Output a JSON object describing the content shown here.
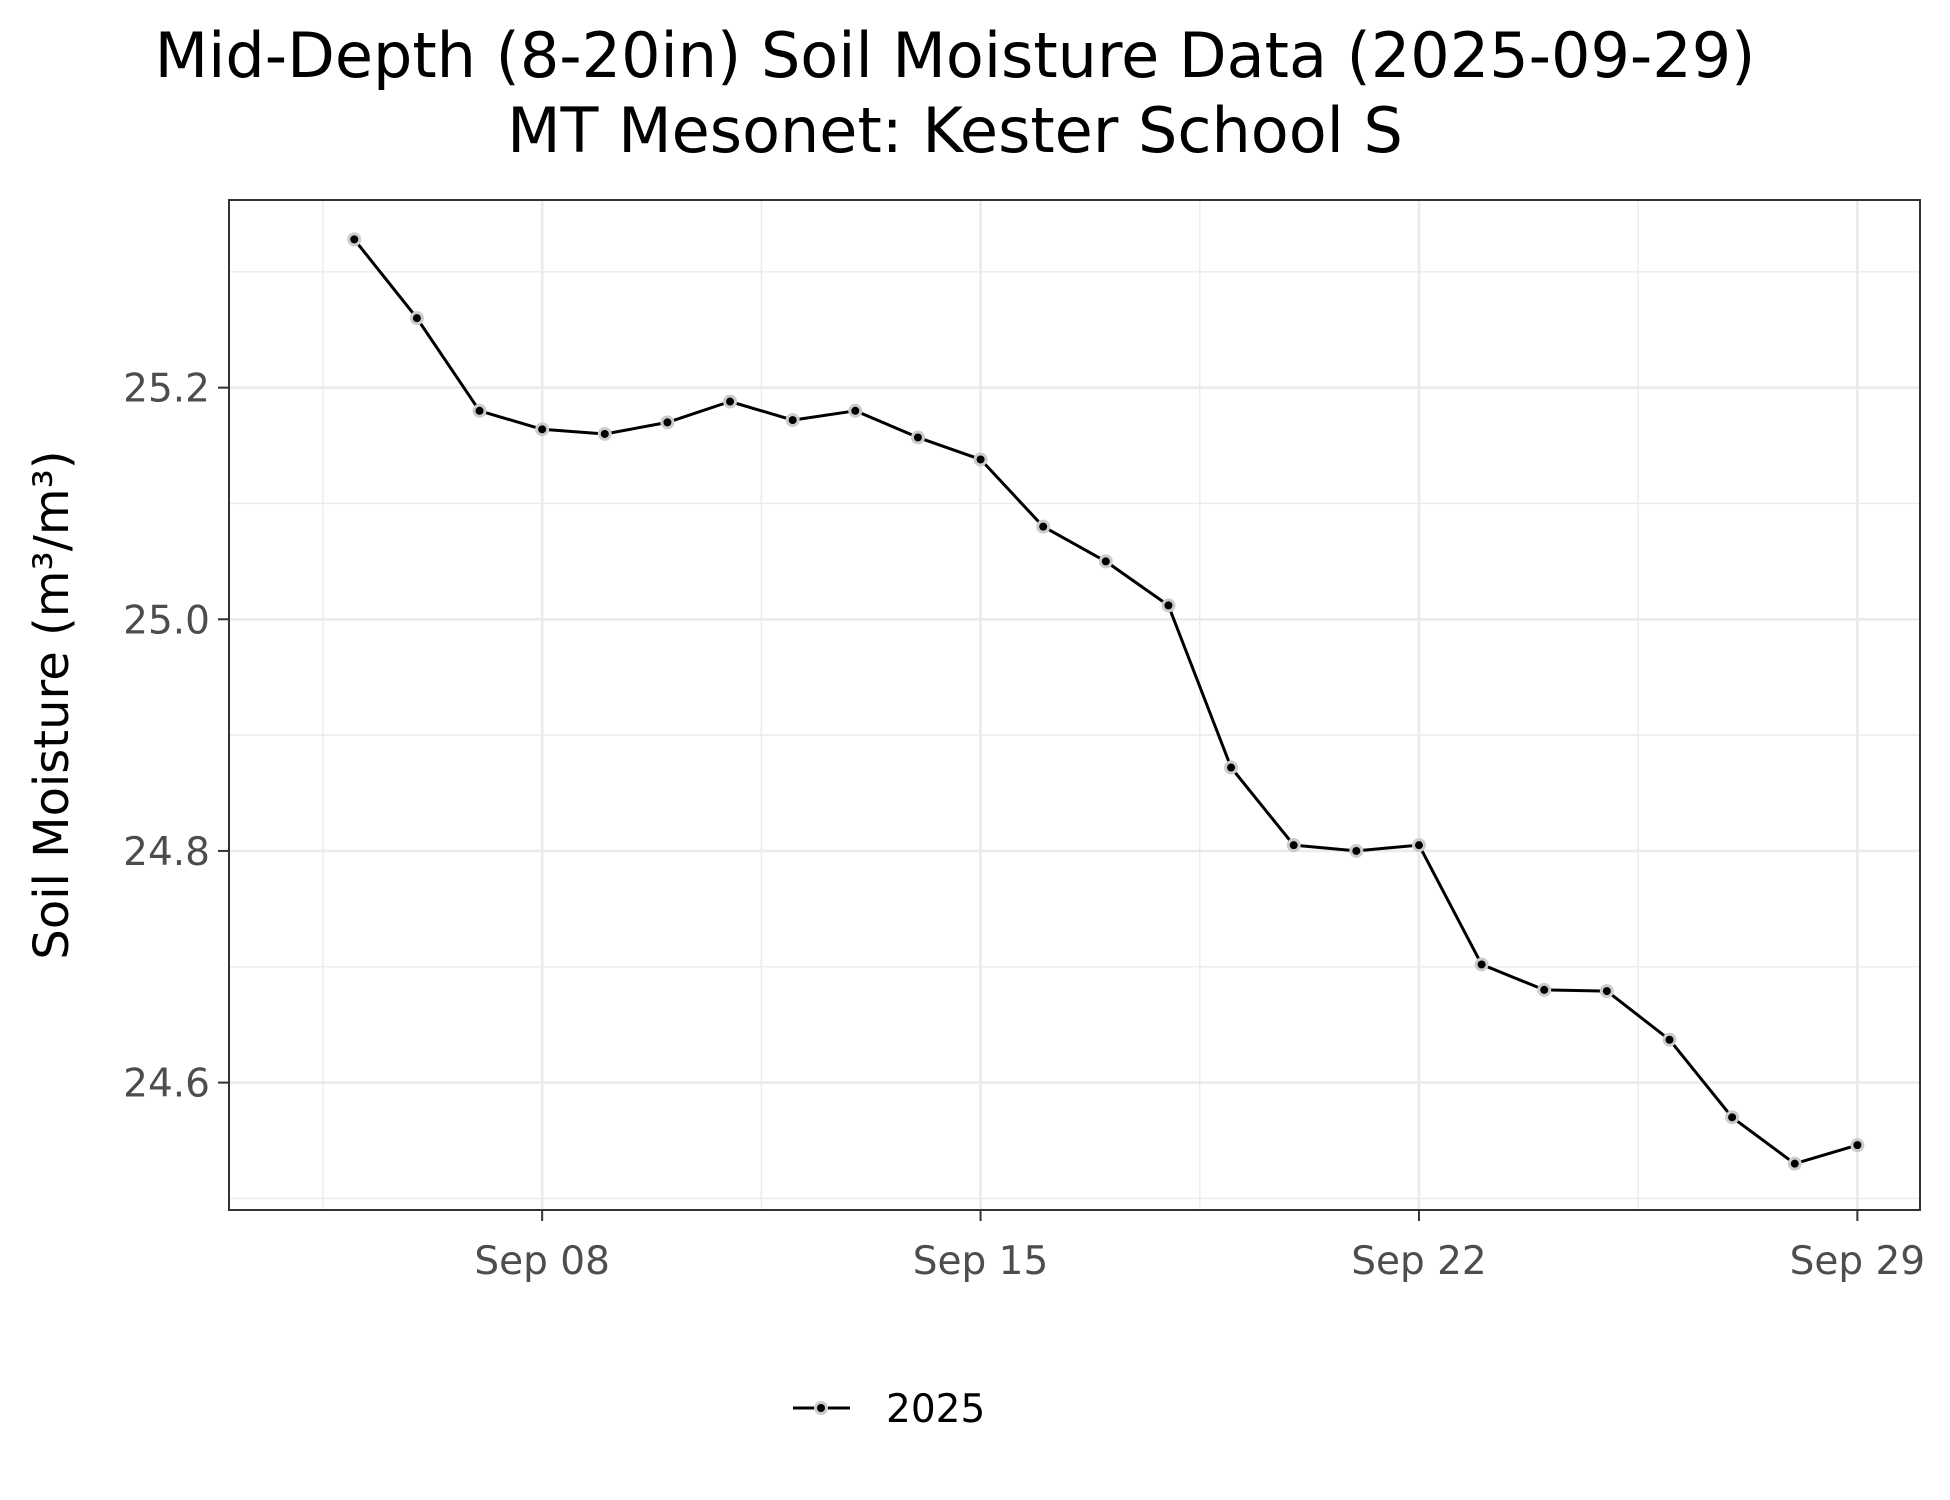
{
  "chart_data": {
    "type": "line",
    "title": "Mid-Depth (8-20in) Soil Moisture Data (2025-09-29)",
    "subtitle": "MT Mesonet: Kester School S",
    "xlabel": "",
    "ylabel": "Soil Moisture (m³/m³)",
    "x_ticks": [
      {
        "date": "2025-09-08",
        "label": "Sep 08"
      },
      {
        "date": "2025-09-15",
        "label": "Sep 15"
      },
      {
        "date": "2025-09-22",
        "label": "Sep 22"
      },
      {
        "date": "2025-09-29",
        "label": "Sep 29"
      }
    ],
    "y_ticks": [
      {
        "value": 24.6,
        "label": "24.6"
      },
      {
        "value": 24.8,
        "label": "24.8"
      },
      {
        "value": 25.0,
        "label": "25.0"
      },
      {
        "value": 25.2,
        "label": "25.2"
      }
    ],
    "xlim": [
      "2025-09-03",
      "2025-09-30"
    ],
    "ylim": [
      24.49,
      25.362
    ],
    "grid": true,
    "legend_position": "bottom",
    "series": [
      {
        "name": "2025",
        "color": "#000000",
        "x": [
          "2025-09-05",
          "2025-09-06",
          "2025-09-07",
          "2025-09-08",
          "2025-09-09",
          "2025-09-10",
          "2025-09-11",
          "2025-09-12",
          "2025-09-13",
          "2025-09-14",
          "2025-09-15",
          "2025-09-16",
          "2025-09-17",
          "2025-09-18",
          "2025-09-19",
          "2025-09-20",
          "2025-09-21",
          "2025-09-22",
          "2025-09-23",
          "2025-09-24",
          "2025-09-25",
          "2025-09-26",
          "2025-09-27",
          "2025-09-28",
          "2025-09-29"
        ],
        "values": [
          25.328,
          25.26,
          25.18,
          25.164,
          25.16,
          25.17,
          25.188,
          25.172,
          25.18,
          25.157,
          25.138,
          25.08,
          25.05,
          25.012,
          24.872,
          24.805,
          24.8,
          24.805,
          24.702,
          24.68,
          24.679,
          24.637,
          24.57,
          24.53,
          24.546
        ]
      }
    ]
  }
}
